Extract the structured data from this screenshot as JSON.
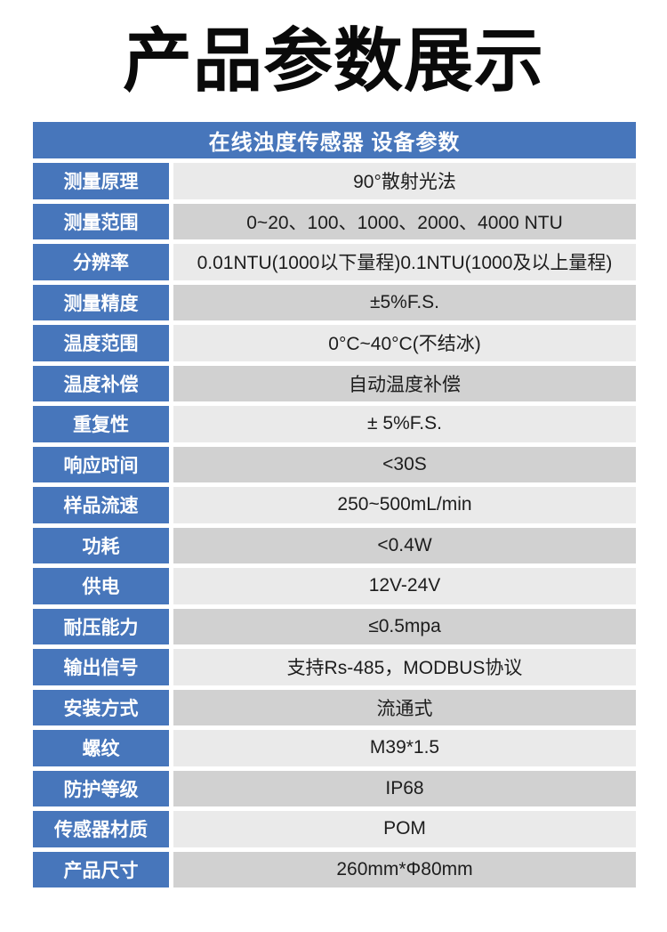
{
  "page": {
    "title": "产品参数展示"
  },
  "table": {
    "header": "在线浊度传感器 设备参数",
    "rows": [
      {
        "label": "测量原理",
        "value": "90°散射光法"
      },
      {
        "label": "测量范围",
        "value": "0~20、100、1000、2000、4000 NTU"
      },
      {
        "label": "分辨率",
        "value": "0.01NTU(1000以下量程)0.1NTU(1000及以上量程)"
      },
      {
        "label": "测量精度",
        "value": "±5%F.S."
      },
      {
        "label": "温度范围",
        "value": "0°C~40°C(不结冰)"
      },
      {
        "label": "温度补偿",
        "value": "自动温度补偿"
      },
      {
        "label": "重复性",
        "value": "± 5%F.S."
      },
      {
        "label": "响应时间",
        "value": "<30S"
      },
      {
        "label": "样品流速",
        "value": "250~500mL/min"
      },
      {
        "label": "功耗",
        "value": "<0.4W"
      },
      {
        "label": "供电",
        "value": "12V-24V"
      },
      {
        "label": "耐压能力",
        "value": "≤0.5mpa"
      },
      {
        "label": "输出信号",
        "value": "支持Rs-485，MODBUS协议"
      },
      {
        "label": "安装方式",
        "value": "流通式"
      },
      {
        "label": "螺纹",
        "value": "M39*1.5"
      },
      {
        "label": "防护等级",
        "value": "IP68"
      },
      {
        "label": "传感器材质",
        "value": "POM"
      },
      {
        "label": "产品尺寸",
        "value": "260mm*Φ80mm"
      }
    ],
    "colors": {
      "header_blue": "#4776bb",
      "label_blue": "#4776bb",
      "row_light": "#eaeaea",
      "row_dark": "#d1d1d1",
      "header_text": "#ffffff",
      "value_text": "#1d1d1d",
      "title_text": "#0a0a0a"
    }
  }
}
